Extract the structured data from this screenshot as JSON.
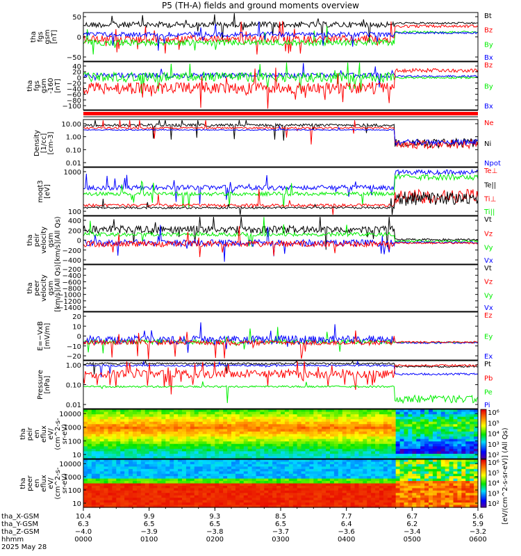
{
  "title": "P5 (TH-A) fields and ground moments overview",
  "colors": {
    "black": "#000000",
    "red": "#ff0000",
    "green": "#00ee00",
    "blue": "#0000ff"
  },
  "chart_data": [
    {
      "type": "line",
      "id": "fgs",
      "ylabel": [
        "tha",
        "fgs",
        "gsm",
        "[nT]"
      ],
      "yticks": [
        "50",
        "0",
        "−50"
      ],
      "ylim": [
        -80,
        80
      ],
      "series": [
        {
          "name": "Bt",
          "color": "#000000"
        },
        {
          "name": "Bz",
          "color": "#ff0000"
        },
        {
          "name": "By",
          "color": "#00ee00"
        },
        {
          "name": "Bx",
          "color": "#0000ff"
        }
      ]
    },
    {
      "type": "line",
      "id": "fgs_cut",
      "ylabel": [
        "tha",
        "fgs",
        "gsm",
        "-160",
        "[nT]"
      ],
      "yticks": [
        "40",
        "20",
        "0",
        "−20",
        "−40",
        "−60",
        "−80",
        "−100"
      ],
      "ylim": [
        -110,
        40
      ],
      "series": [
        {
          "name": "Bz",
          "color": "#ff0000"
        },
        {
          "name": "By",
          "color": "#00ee00"
        },
        {
          "name": "Bx",
          "color": "#0000ff"
        }
      ]
    },
    {
      "type": "line",
      "id": "density",
      "ylabel": [
        "Density",
        "[1/cc]",
        "[cm-3]"
      ],
      "yticks": [
        "10.00",
        "1.00",
        "0.10",
        "0.01"
      ],
      "ylim": [
        0.01,
        30
      ],
      "log": true,
      "series": [
        {
          "name": "Ne",
          "color": "#ff0000"
        },
        {
          "name": "Ni",
          "color": "#000000"
        },
        {
          "name": "Npot",
          "color": "#0000ff"
        }
      ]
    },
    {
      "type": "line",
      "id": "temp",
      "ylabel": [
        "moqt3",
        "[eV]"
      ],
      "yticks": [
        "1000",
        "100"
      ],
      "ylim": [
        30,
        8000
      ],
      "log": true,
      "series": [
        {
          "name": "Te⊥",
          "color": "#ff0000"
        },
        {
          "name": "Te||",
          "color": "#000000"
        },
        {
          "name": "Ti⊥",
          "color": "#ff0000"
        },
        {
          "name": "Ti||",
          "color": "#00ee00"
        }
      ]
    },
    {
      "type": "line",
      "id": "peirvel",
      "ylabel": [
        "tha",
        "peir",
        "velocity",
        "gsm",
        "[km/s](All Qs)"
      ],
      "yticks": [
        "400",
        "200",
        "0",
        "−200",
        "−400"
      ],
      "ylim": [
        -400,
        400
      ],
      "series": [
        {
          "name": "Vt",
          "color": "#000000"
        },
        {
          "name": "Vz",
          "color": "#ff0000"
        },
        {
          "name": "Vy",
          "color": "#00ee00"
        },
        {
          "name": "Vx",
          "color": "#0000ff"
        }
      ]
    },
    {
      "type": "line",
      "id": "peervel",
      "ylabel": [
        "tha",
        "peer",
        "velocity",
        "gsm",
        "[km/s](All Qs)"
      ],
      "yticks": [
        "−200",
        "−400",
        "−600",
        "−800",
        "−1000",
        "−1200",
        "−1400"
      ],
      "ylim": [
        -1450,
        -200
      ],
      "series": [
        {
          "name": "Vt",
          "color": "#000000"
        },
        {
          "name": "Vz",
          "color": "#ff0000"
        },
        {
          "name": "Vy",
          "color": "#00ee00"
        },
        {
          "name": "Vx",
          "color": "#0000ff"
        }
      ]
    },
    {
      "type": "line",
      "id": "efield",
      "ylabel": [
        "E=−VxB",
        "[mV/m]"
      ],
      "yticks": [
        "20",
        "10",
        "0",
        "−10",
        "−20"
      ],
      "ylim": [
        -22,
        22
      ],
      "series": [
        {
          "name": "Ez",
          "color": "#ff0000"
        },
        {
          "name": "Ey",
          "color": "#00ee00"
        },
        {
          "name": "Ex",
          "color": "#0000ff"
        }
      ]
    },
    {
      "type": "line",
      "id": "pressure",
      "ylabel": [
        "Pressure",
        "[nPa]"
      ],
      "yticks": [
        "1.00",
        "0.10",
        "0.01"
      ],
      "ylim": [
        0.002,
        2
      ],
      "log": true,
      "series": [
        {
          "name": "Pt",
          "color": "#000000"
        },
        {
          "name": "Pb",
          "color": "#ff0000"
        },
        {
          "name": "Pe",
          "color": "#00ee00"
        },
        {
          "name": "Pi",
          "color": "#0000ff"
        }
      ]
    },
    {
      "type": "heatmap",
      "id": "peir_spec",
      "ylabel": [
        "tha",
        "peir",
        "en",
        "eflux",
        "eV/",
        "(cm^2-s-",
        "sr-eV)"
      ],
      "yticks": [
        "10000",
        "1000",
        "100",
        "10"
      ],
      "ylim": [
        5,
        25000
      ],
      "log": true,
      "colorbar": {
        "label": "[eV/(cm^2-s-sr-eV)] (All Qs)",
        "ticks": [
          "10⁶",
          "10⁵",
          "10⁴",
          "10³",
          "10²"
        ]
      }
    },
    {
      "type": "heatmap",
      "id": "peer_spec",
      "ylabel": [
        "tha",
        "peer",
        "en",
        "eflux",
        "eV/",
        "(cm^2-s-",
        "sr-eV)"
      ],
      "yticks": [
        "10000",
        "1000",
        "100",
        "10"
      ],
      "ylim": [
        5,
        25000
      ],
      "log": true,
      "colorbar": {
        "label": "[eV/(cm^2-s-sr-eV)] (All Qs)",
        "ticks": [
          "10⁶",
          "10⁵",
          "10⁴",
          "10³",
          "10²"
        ]
      }
    }
  ],
  "xaxis": {
    "rows": [
      {
        "label": "tha_X-GSM",
        "values": [
          "10.4",
          "9.9",
          "9.3",
          "8.5",
          "7.7",
          "6.7",
          "5.6"
        ]
      },
      {
        "label": "tha_Y-GSM",
        "values": [
          "6.3",
          "6.5",
          "6.5",
          "6.5",
          "6.4",
          "6.2",
          "5.9"
        ]
      },
      {
        "label": "tha_Z-GSM",
        "values": [
          "−4.0",
          "−3.9",
          "−3.8",
          "−3.7",
          "−3.6",
          "−3.4",
          "−3.2"
        ]
      },
      {
        "label": "hhmm",
        "values": [
          "0000",
          "0100",
          "0200",
          "0300",
          "0400",
          "0500",
          "0600"
        ]
      }
    ],
    "date": "2025 May 28"
  }
}
